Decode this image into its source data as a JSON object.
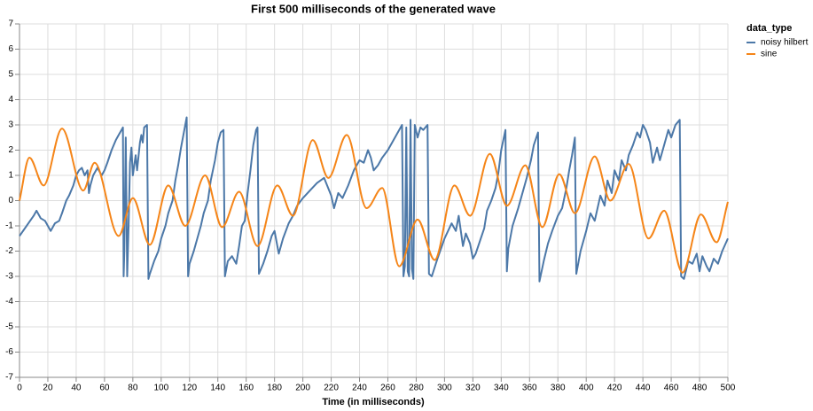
{
  "chart_data": {
    "type": "line",
    "title": "First 500 milliseconds of the generated wave",
    "x_label": "Time (in milliseconds)",
    "legend_title": "data_type",
    "legend": "top-right",
    "grid": true,
    "xlim": [
      0,
      500
    ],
    "ylim": [
      -7,
      7
    ],
    "xticks": [
      0,
      20,
      40,
      60,
      80,
      100,
      120,
      140,
      160,
      180,
      200,
      220,
      240,
      260,
      280,
      300,
      320,
      340,
      360,
      380,
      400,
      420,
      440,
      460,
      480,
      500
    ],
    "yticks": [
      -7,
      -6,
      -5,
      -4,
      -3,
      -2,
      -1,
      0,
      1,
      2,
      3,
      4,
      5,
      6,
      7
    ],
    "series": [
      {
        "name": "noisy hilbert",
        "color": "#4c78a8",
        "curve": "linear",
        "x": [
          0,
          5,
          10,
          12,
          15,
          18,
          20,
          22,
          25,
          28,
          30,
          33,
          35,
          38,
          40,
          42,
          44,
          46,
          48,
          49,
          50,
          52,
          55,
          58,
          60,
          62,
          65,
          68,
          70,
          72,
          73,
          73.5,
          74,
          75,
          76,
          77,
          78,
          79,
          80,
          82,
          83,
          85,
          86,
          87,
          88,
          90,
          91,
          92,
          95,
          98,
          100,
          103,
          105,
          108,
          110,
          112,
          114,
          116,
          118,
          119,
          120,
          123,
          126,
          128,
          130,
          133,
          135,
          138,
          140,
          142,
          144,
          145,
          147,
          150,
          153,
          155,
          157,
          159,
          161,
          163,
          165,
          167,
          168,
          169,
          172,
          175,
          178,
          180,
          183,
          186,
          190,
          193,
          196,
          200,
          205,
          210,
          215,
          220,
          222,
          225,
          228,
          232,
          236,
          240,
          243,
          246,
          248,
          250,
          253,
          256,
          260,
          264,
          268,
          270,
          271,
          272,
          273,
          274,
          275,
          276,
          277,
          278,
          279,
          281,
          283,
          285,
          288,
          289,
          291,
          295,
          300,
          305,
          308,
          310,
          313,
          315,
          318,
          320,
          322,
          325,
          328,
          330,
          333,
          336,
          338,
          340,
          343,
          344,
          345,
          348,
          352,
          355,
          358,
          361,
          363,
          366,
          367,
          370,
          373,
          376,
          380,
          383,
          386,
          388,
          390,
          392,
          393,
          396,
          400,
          403,
          406,
          410,
          413,
          415,
          418,
          420,
          423,
          425,
          428,
          430,
          433,
          436,
          438,
          440,
          442,
          445,
          447,
          450,
          452,
          455,
          458,
          460,
          463,
          466,
          467,
          469,
          472,
          475,
          478,
          480,
          482,
          485,
          487,
          490,
          493,
          496,
          500
        ],
        "values": [
          -1.4,
          -1.0,
          -0.6,
          -0.4,
          -0.7,
          -0.8,
          -1.0,
          -1.2,
          -0.9,
          -0.8,
          -0.5,
          0,
          0.2,
          0.6,
          1.0,
          1.2,
          1.3,
          1.0,
          1.2,
          0.3,
          0.6,
          1.0,
          1.3,
          1.0,
          1.2,
          1.5,
          2.0,
          2.4,
          2.6,
          2.8,
          2.9,
          -3.0,
          -2.0,
          2.5,
          -3,
          -1,
          1.5,
          2.1,
          1.0,
          1.8,
          1.2,
          2.3,
          2.6,
          2.3,
          2.9,
          3.0,
          -3.1,
          -2.9,
          -2.4,
          -2.0,
          -1.5,
          -1.0,
          -0.5,
          0,
          0.8,
          1.4,
          2.1,
          2.7,
          3.3,
          -3.0,
          -2.5,
          -2.0,
          -1.4,
          -1.0,
          -0.5,
          0,
          0.8,
          1.6,
          2.3,
          2.7,
          2.8,
          -3.0,
          -2.4,
          -2.2,
          -2.5,
          -1.8,
          -1.0,
          -0.8,
          0.3,
          1.2,
          2.2,
          2.8,
          2.9,
          -2.9,
          -2.5,
          -2.0,
          -1.4,
          -1.2,
          -2.1,
          -1.5,
          -0.9,
          -0.6,
          -0.2,
          0.1,
          0.4,
          0.7,
          0.9,
          0.2,
          -0.3,
          0.3,
          0.1,
          0.6,
          1.2,
          1.6,
          1.5,
          2.0,
          1.7,
          1.2,
          1.4,
          1.7,
          2.0,
          2.4,
          2.8,
          3.0,
          -3.0,
          -2.6,
          2.9,
          -2.8,
          -3.0,
          3.2,
          -2.7,
          -3.1,
          3.0,
          2.5,
          2.9,
          2.8,
          3.0,
          -2.9,
          -3.0,
          -2.3,
          -1.5,
          -0.9,
          -1.2,
          -0.6,
          -1.8,
          -1.3,
          -1.7,
          -2.3,
          -2.1,
          -1.6,
          -1.1,
          -0.4,
          0.0,
          0.5,
          1.1,
          2.0,
          2.8,
          -2.8,
          -1.9,
          -1.0,
          -0.3,
          0.3,
          0.9,
          1.6,
          2.2,
          2.7,
          -3.2,
          -2.4,
          -1.7,
          -1.2,
          -0.6,
          -0.3,
          0.5,
          1.2,
          1.8,
          2.5,
          -2.9,
          -2.0,
          -1.2,
          -0.5,
          -0.8,
          0.2,
          -0.2,
          0.8,
          0.3,
          1.2,
          0.8,
          1.6,
          1.2,
          1.8,
          2.2,
          2.7,
          2.5,
          3.0,
          2.8,
          2.3,
          1.5,
          2.1,
          1.6,
          2.2,
          2.8,
          2.5,
          3.0,
          3.2,
          -3.0,
          -3.1,
          -2.4,
          -2.5,
          -2.1,
          -2.8,
          -2.2,
          -2.6,
          -2.8,
          -2.3,
          -2.5,
          -2.0,
          -1.5
        ]
      },
      {
        "name": "sine",
        "color": "#f58518",
        "curve": "monotone",
        "x": [
          0,
          7,
          17,
          30,
          45,
          53,
          70,
          80,
          92,
          105,
          117,
          131,
          143,
          155,
          168,
          182,
          193,
          207,
          218,
          231,
          245,
          256,
          268,
          281,
          293,
          307,
          318,
          332,
          344,
          357,
          369,
          381,
          392,
          406,
          417,
          430,
          444,
          455,
          468,
          481,
          492,
          500
        ],
        "values": [
          0,
          1.7,
          0.6,
          2.85,
          0.4,
          1.5,
          -1.4,
          0.1,
          -1.75,
          0.6,
          -1.0,
          1.0,
          -1.05,
          0.35,
          -1.8,
          0.6,
          -0.6,
          2.4,
          0.9,
          2.6,
          -0.3,
          0.5,
          -2.6,
          -0.75,
          -2.35,
          0.6,
          -0.6,
          1.85,
          -0.2,
          1.4,
          -1.05,
          1.05,
          -0.5,
          1.75,
          0.0,
          1.45,
          -1.5,
          -0.4,
          -2.85,
          -0.55,
          -1.65,
          -0.05
        ]
      }
    ]
  }
}
